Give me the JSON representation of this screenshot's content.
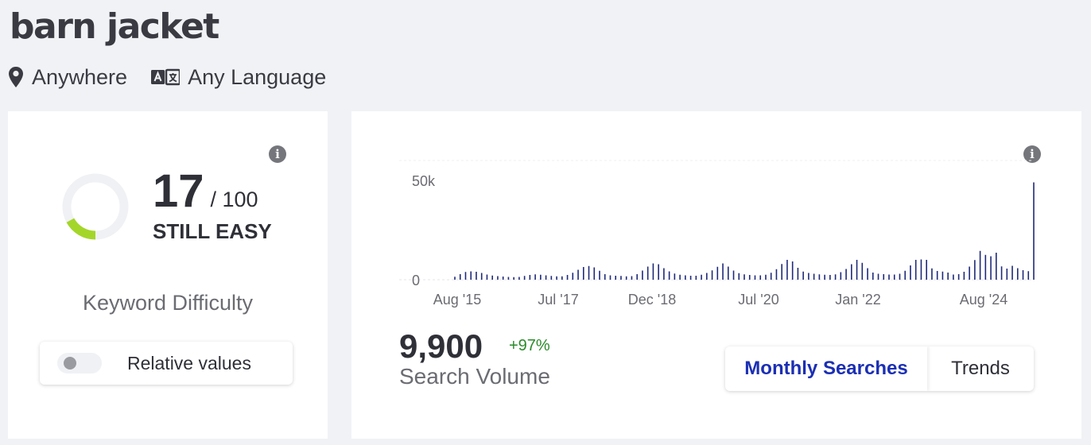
{
  "keyword": {
    "title": "barn jacket"
  },
  "filters": {
    "location": {
      "label": "Anywhere",
      "icon": "map-pin-icon"
    },
    "language": {
      "label": "Any Language",
      "icon": "translate-icon"
    }
  },
  "keyword_difficulty": {
    "value": "17",
    "max": "/ 100",
    "rating": "STILL EASY",
    "caption": "Keyword Difficulty",
    "fill_fraction": 0.17,
    "gauge_color": "#a4d62a",
    "track_color": "#f0f1f4",
    "relative_toggle": {
      "label": "Relative values",
      "enabled": false
    },
    "info_icon": "info-icon"
  },
  "search_volume": {
    "value": "9,900",
    "change": "+97%",
    "label": "Search Volume",
    "tabs": [
      {
        "label": "Monthly Searches",
        "active": true
      },
      {
        "label": "Trends",
        "active": false
      }
    ],
    "info_icon": "info-icon"
  },
  "chart_data": {
    "type": "bar",
    "bar_color": "#1f2a7a",
    "y_tick_labels": [
      "0",
      "50k"
    ],
    "x_tick_labels": [
      "Aug '15",
      "Jul '17",
      "Dec '18",
      "Jul '20",
      "Jan '22",
      "Aug '24"
    ],
    "ylim": [
      0,
      60000
    ],
    "grid": true,
    "values": [
      1500,
      2800,
      3900,
      4200,
      4000,
      3400,
      2600,
      2100,
      1800,
      1600,
      1400,
      1300,
      1400,
      1900,
      2400,
      2700,
      2500,
      2200,
      1900,
      1700,
      1700,
      2400,
      3500,
      5000,
      6400,
      6900,
      6200,
      4500,
      2800,
      2200,
      2000,
      1900,
      1700,
      1800,
      2800,
      4600,
      6600,
      8200,
      7800,
      5800,
      4200,
      3100,
      2500,
      2200,
      2000,
      2000,
      2500,
      3400,
      4700,
      6500,
      8200,
      6600,
      4600,
      3300,
      2700,
      2400,
      2200,
      2200,
      2500,
      3500,
      5300,
      7900,
      10000,
      9200,
      6000,
      4100,
      3400,
      3000,
      2700,
      2500,
      2400,
      2700,
      3800,
      5400,
      7800,
      10000,
      8500,
      5800,
      3600,
      3000,
      2800,
      2600,
      2600,
      3000,
      4500,
      7200,
      10000,
      10200,
      10000,
      5700,
      4400,
      4100,
      3600,
      2600,
      2800,
      4000,
      6600,
      9900,
      14500,
      12500,
      11800,
      13600,
      6700,
      5600,
      7000,
      5800,
      4800,
      4300,
      49000
    ]
  }
}
